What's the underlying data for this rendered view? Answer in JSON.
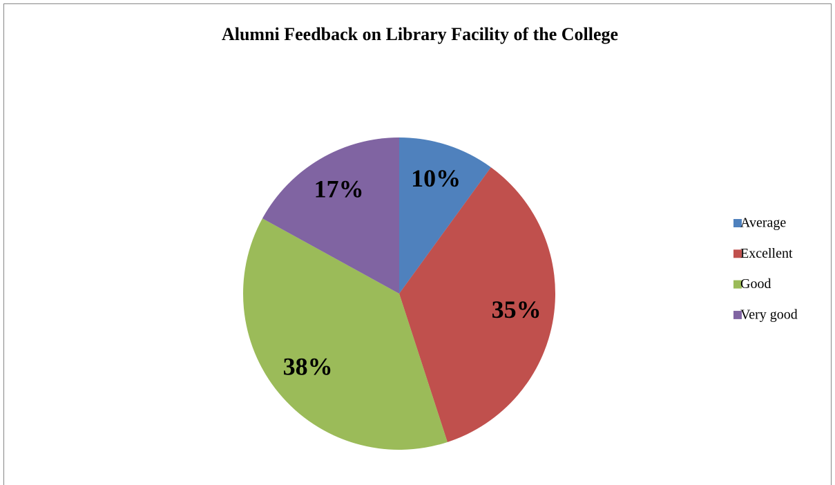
{
  "chart_data": {
    "type": "pie",
    "title": "Alumni Feedback on Library Facility of the College",
    "categories": [
      "Average",
      "Excellent",
      "Good",
      "Very good"
    ],
    "values": [
      10,
      35,
      38,
      17
    ],
    "value_labels": [
      "10%",
      "35%",
      "38%",
      "17%"
    ],
    "colors": [
      "#4f81bd",
      "#c0504d",
      "#9bbb59",
      "#8064a2"
    ],
    "legend": "right"
  }
}
